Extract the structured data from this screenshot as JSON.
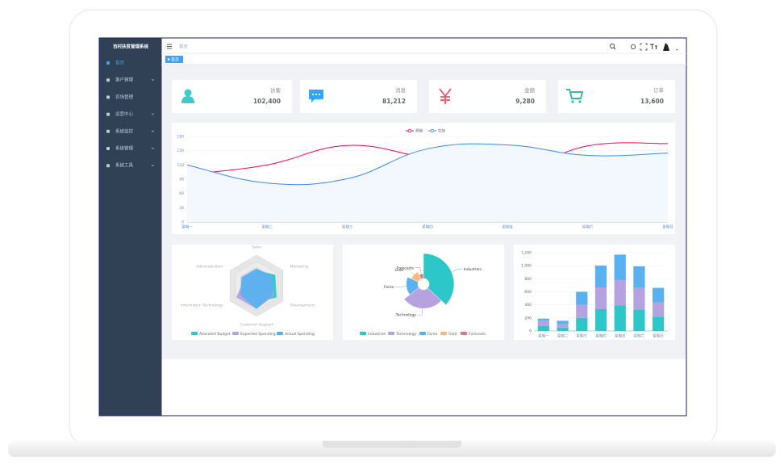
{
  "sidebar": {
    "title": "百村扶贫管理系统",
    "menu": [
      "首页",
      "客户管理",
      "农场管理",
      "运营中心",
      "系统监控",
      "系统管理",
      "系统工具"
    ]
  },
  "navbar": {
    "breadcrumb": "首页"
  },
  "tags": [
    "首页"
  ],
  "cards": [
    {
      "label": "访客",
      "value": "102,400"
    },
    {
      "label": "消息",
      "value": "81,212"
    },
    {
      "label": "金额",
      "value": "9,280"
    },
    {
      "label": "订单",
      "value": "13,600"
    }
  ],
  "chart_data": [
    {
      "type": "line",
      "smooth": true,
      "grid": true,
      "categories": [
        "星期一",
        "星期二",
        "星期三",
        "星期四",
        "星期五",
        "星期六",
        "星期日"
      ],
      "series": [
        {
          "name": "预期",
          "color": "#ff005a",
          "values": [
            100,
            120,
            161,
            134,
            105,
            160,
            165
          ]
        },
        {
          "name": "实际",
          "color": "#3888fa",
          "area_color": "#f3f8ff",
          "values": [
            120,
            82,
            91,
            154,
            162,
            140,
            145
          ]
        }
      ],
      "ylim": [
        0,
        180
      ],
      "yticks": [
        0,
        30,
        60,
        90,
        120,
        150,
        180
      ]
    },
    {
      "type": "radar",
      "indicators": [
        {
          "name": "Sales",
          "max": 10000
        },
        {
          "name": "Administration",
          "max": 20000
        },
        {
          "name": "Information Technology",
          "max": 20000
        },
        {
          "name": "Customer Support",
          "max": 20000
        },
        {
          "name": "Development",
          "max": 20000
        },
        {
          "name": "Marketing",
          "max": 20000
        }
      ],
      "series": [
        {
          "name": "Allocated Budget",
          "color": "#2ec7c9",
          "values": [
            5000,
            7000,
            12000,
            11000,
            15000,
            14000
          ]
        },
        {
          "name": "Expected Spending",
          "color": "#b6a2de",
          "values": [
            4000,
            9000,
            15000,
            15000,
            13000,
            11000
          ]
        },
        {
          "name": "Actual Spending",
          "color": "#5ab1ef",
          "values": [
            5500,
            11000,
            12000,
            15000,
            12000,
            12000
          ]
        }
      ]
    },
    {
      "type": "pie",
      "rose": true,
      "categories": [
        "Industries",
        "Technology",
        "Forex",
        "Gold",
        "Forecasts"
      ],
      "values": [
        320,
        240,
        149,
        100,
        59
      ],
      "colors": [
        "#2ec7c9",
        "#b6a2de",
        "#5ab1ef",
        "#ffb980",
        "#d87a80"
      ]
    },
    {
      "type": "bar",
      "stacked": true,
      "grid": true,
      "categories": [
        "星期一",
        "星期二",
        "星期三",
        "星期四",
        "星期五",
        "星期六",
        "星期日"
      ],
      "series": [
        {
          "color": "#2ec7c9",
          "values": [
            79,
            52,
            200,
            334,
            390,
            330,
            220
          ]
        },
        {
          "color": "#b6a2de",
          "values": [
            80,
            52,
            200,
            334,
            390,
            330,
            220
          ]
        },
        {
          "color": "#5ab1ef",
          "values": [
            30,
            52,
            200,
            334,
            390,
            330,
            220
          ]
        }
      ],
      "ylim": [
        0,
        1200
      ],
      "yticks": [
        0,
        200,
        400,
        600,
        800,
        {
          "value": 1000,
          "label": "1,000"
        },
        {
          "value": 1200,
          "label": "1,200"
        }
      ]
    }
  ]
}
